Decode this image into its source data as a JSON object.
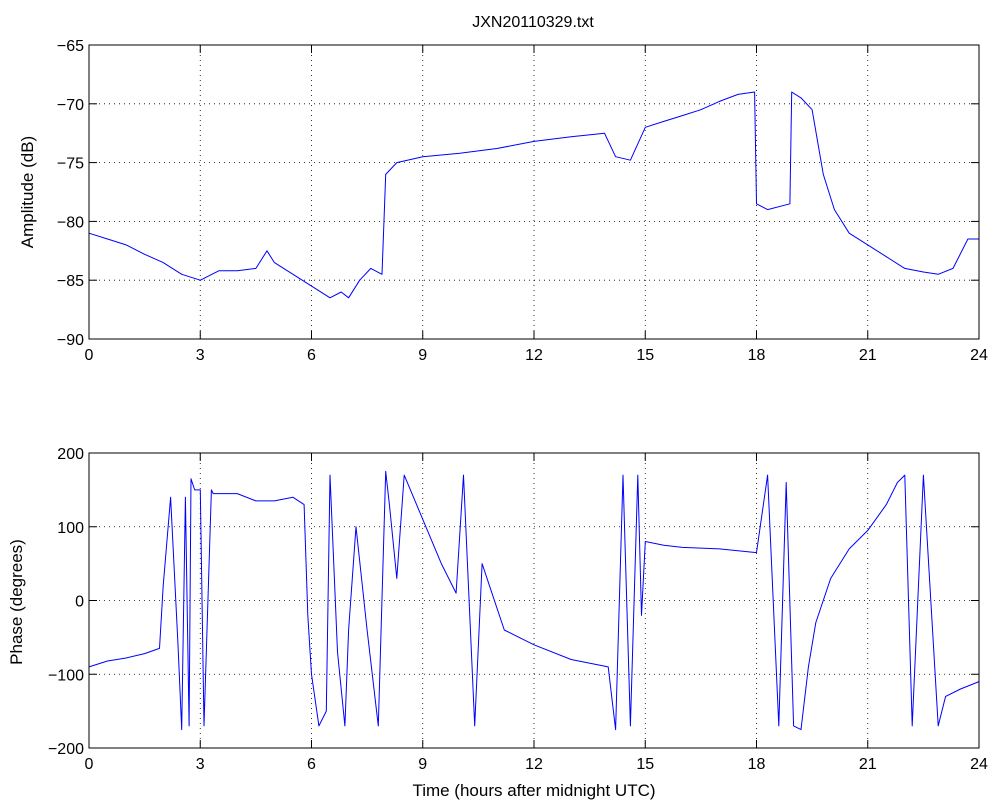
{
  "chart_data": [
    {
      "type": "line",
      "title": "JXN20110329.txt",
      "xlabel": "",
      "ylabel": "Amplitude (dB)",
      "xlim": [
        0,
        24
      ],
      "ylim": [
        -90,
        -65
      ],
      "xticks": [
        0,
        3,
        6,
        9,
        12,
        15,
        18,
        21,
        24
      ],
      "yticks": [
        -90,
        -85,
        -80,
        -75,
        -70,
        -65
      ],
      "grid": true,
      "series": [
        {
          "color": "#0000ff",
          "x": [
            0,
            0.5,
            1,
            1.5,
            2,
            2.5,
            3,
            3.5,
            4,
            4.5,
            4.8,
            5,
            5.5,
            6,
            6.5,
            6.8,
            7,
            7.3,
            7.6,
            7.9,
            8.0,
            8.3,
            9,
            10,
            11,
            12,
            13,
            13.9,
            14.2,
            14.6,
            15,
            15.5,
            16,
            16.5,
            17,
            17.5,
            17.95,
            18.0,
            18.3,
            18.9,
            18.95,
            19.2,
            19.5,
            19.8,
            20.1,
            20.5,
            21,
            21.5,
            22,
            22.5,
            22.9,
            23.3,
            23.7,
            24
          ],
          "y": [
            -81,
            -81.5,
            -82,
            -82.8,
            -83.5,
            -84.5,
            -85,
            -84.2,
            -84.2,
            -84,
            -82.5,
            -83.5,
            -84.5,
            -85.5,
            -86.5,
            -86,
            -86.5,
            -85,
            -84,
            -84.5,
            -76,
            -75,
            -74.5,
            -74.2,
            -73.8,
            -73.2,
            -72.8,
            -72.5,
            -74.5,
            -74.8,
            -72,
            -71.5,
            -71,
            -70.5,
            -69.8,
            -69.2,
            -69,
            -78.5,
            -79,
            -78.5,
            -69,
            -69.5,
            -70.5,
            -76,
            -79,
            -81,
            -82,
            -83,
            -84,
            -84.3,
            -84.5,
            -84,
            -81.5,
            -81.5
          ]
        }
      ]
    },
    {
      "type": "line",
      "title": "",
      "xlabel": "Time (hours after midnight UTC)",
      "ylabel": "Phase (degrees)",
      "xlim": [
        0,
        24
      ],
      "ylim": [
        -200,
        200
      ],
      "xticks": [
        0,
        3,
        6,
        9,
        12,
        15,
        18,
        21,
        24
      ],
      "yticks": [
        -200,
        -100,
        0,
        100,
        200
      ],
      "grid": true,
      "series": [
        {
          "color": "#0000ff",
          "x": [
            0,
            0.5,
            1,
            1.5,
            1.9,
            2.0,
            2.2,
            2.4,
            2.5,
            2.6,
            2.7,
            2.75,
            2.85,
            3.0,
            3.1,
            3.3,
            3.35,
            3.5,
            4.0,
            4.5,
            5,
            5.5,
            5.8,
            5.9,
            6.0,
            6.2,
            6.4,
            6.5,
            6.7,
            6.9,
            7.0,
            7.2,
            7.5,
            7.8,
            8.0,
            8.1,
            8.3,
            8.5,
            9,
            9.5,
            9.9,
            10.1,
            10.4,
            10.6,
            10.8,
            11.2,
            12,
            13,
            14,
            14.2,
            14.4,
            14.6,
            14.8,
            14.9,
            15.0,
            15.5,
            16,
            17,
            18,
            18.3,
            18.6,
            18.8,
            19.0,
            19.2,
            19.4,
            19.6,
            20,
            20.5,
            21,
            21.5,
            21.8,
            22.0,
            22.2,
            22.5,
            22.9,
            23.1,
            23.5,
            24
          ],
          "y": [
            -90,
            -82,
            -78,
            -72,
            -65,
            20,
            140,
            -60,
            -175,
            140,
            -170,
            165,
            150,
            150,
            -170,
            150,
            145,
            145,
            145,
            135,
            135,
            140,
            130,
            -20,
            -100,
            -170,
            -150,
            170,
            -70,
            -170,
            -40,
            100,
            -40,
            -170,
            175,
            130,
            30,
            170,
            110,
            50,
            10,
            170,
            -170,
            50,
            20,
            -40,
            -60,
            -80,
            -90,
            -175,
            170,
            -170,
            170,
            -20,
            80,
            75,
            72,
            70,
            65,
            170,
            -170,
            160,
            -170,
            -175,
            -90,
            -30,
            30,
            70,
            95,
            130,
            160,
            170,
            -170,
            170,
            -170,
            -130,
            -120,
            -110
          ]
        }
      ]
    }
  ]
}
